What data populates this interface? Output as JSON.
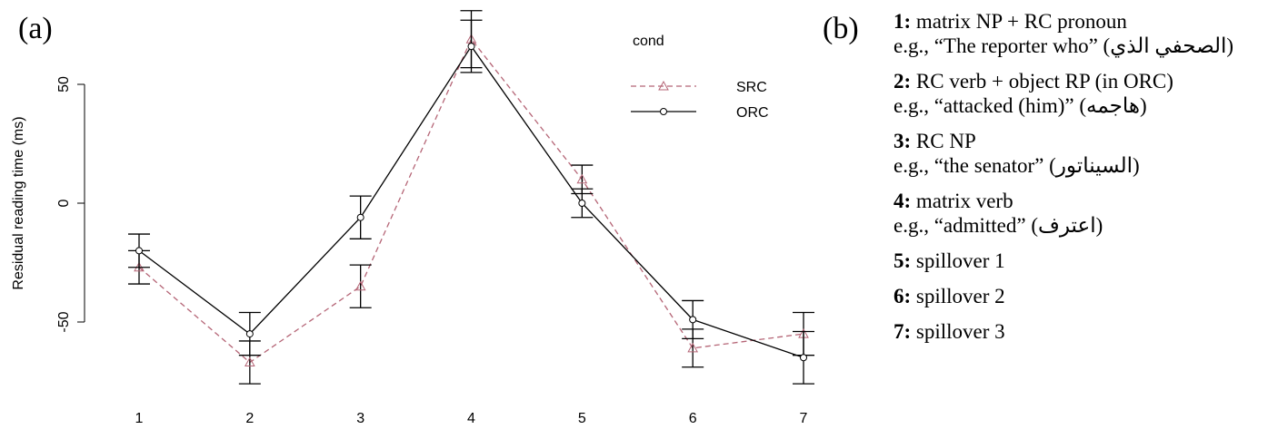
{
  "panel_a_label": "(a)",
  "panel_b_label": "(b)",
  "chart_data": {
    "type": "line",
    "x": [
      1,
      2,
      3,
      4,
      5,
      6,
      7
    ],
    "xticks": [
      "1",
      "2",
      "3",
      "4",
      "5",
      "6",
      "7"
    ],
    "ylabel": "Residual reading time (ms)",
    "yticks": [
      -50,
      0,
      50
    ],
    "ylim": [
      -85,
      80
    ],
    "legend_title": "cond",
    "legend_position": "top-right",
    "series": [
      {
        "name": "SRC",
        "values": [
          -27,
          -67,
          -35,
          69,
          10,
          -61,
          -55
        ],
        "errors": [
          7,
          9,
          9,
          12,
          6,
          8,
          9
        ],
        "color": "#b56576",
        "line_style": "dashed",
        "marker": "triangle"
      },
      {
        "name": "ORC",
        "values": [
          -20,
          -55,
          -6,
          66,
          0,
          -49,
          -65
        ],
        "errors": [
          7,
          9,
          9,
          11,
          6,
          8,
          11
        ],
        "color": "#000000",
        "line_style": "solid",
        "marker": "circle"
      }
    ]
  },
  "legend_b": [
    {
      "num": "1:",
      "title": "matrix NP + RC pronoun",
      "example": "e.g., “The reporter who” (الصحفي الذي)"
    },
    {
      "num": "2:",
      "title": "RC verb + object RP (in ORC)",
      "example": "e.g., “attacked (him)” (هاجمه)"
    },
    {
      "num": "3:",
      "title": "RC NP",
      "example": "e.g., “the senator” (السيناتور)"
    },
    {
      "num": "4:",
      "title": "matrix verb",
      "example": "e.g., “admitted” (اعترف)"
    },
    {
      "num": "5:",
      "title": "spillover 1"
    },
    {
      "num": "6:",
      "title": "spillover 2"
    },
    {
      "num": "7:",
      "title": "spillover 3"
    }
  ]
}
